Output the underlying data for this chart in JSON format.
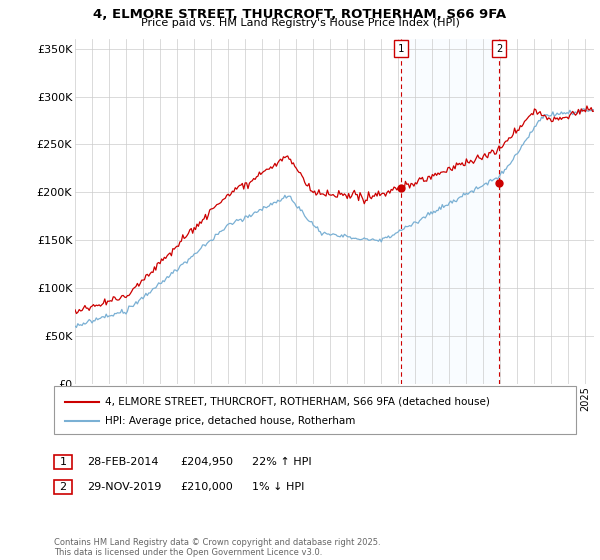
{
  "title": "4, ELMORE STREET, THURCROFT, ROTHERHAM, S66 9FA",
  "subtitle": "Price paid vs. HM Land Registry's House Price Index (HPI)",
  "ylabel_ticks": [
    "£0",
    "£50K",
    "£100K",
    "£150K",
    "£200K",
    "£250K",
    "£300K",
    "£350K"
  ],
  "ytick_values": [
    0,
    50000,
    100000,
    150000,
    200000,
    250000,
    300000,
    350000
  ],
  "ylim": [
    0,
    360000
  ],
  "xlim_start": 1995.0,
  "xlim_end": 2025.5,
  "legend_line1": "4, ELMORE STREET, THURCROFT, ROTHERHAM, S66 9FA (detached house)",
  "legend_line2": "HPI: Average price, detached house, Rotherham",
  "sale1_date": "28-FEB-2014",
  "sale1_price": "£204,950",
  "sale1_hpi": "22% ↑ HPI",
  "sale2_date": "29-NOV-2019",
  "sale2_price": "£210,000",
  "sale2_hpi": "1% ↓ HPI",
  "copyright": "Contains HM Land Registry data © Crown copyright and database right 2025.\nThis data is licensed under the Open Government Licence v3.0.",
  "sale1_x": 2014.16,
  "sale2_x": 2019.91,
  "sale1_price_val": 204950,
  "sale2_price_val": 210000,
  "house_color": "#cc0000",
  "hpi_color": "#7ab0d4",
  "shade_color": "#ddeeff",
  "vline_color": "#cc0000",
  "grid_color": "#cccccc",
  "bg_color": "#ffffff"
}
